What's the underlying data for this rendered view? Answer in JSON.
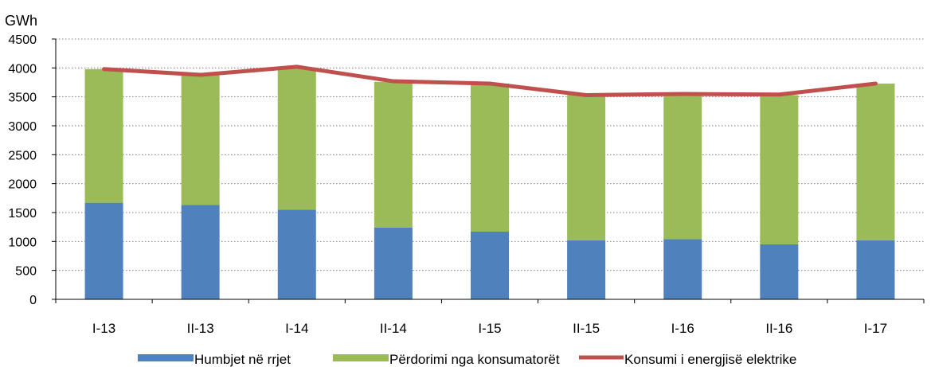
{
  "chart_data": {
    "type": "bar",
    "stacked": true,
    "ylabel": "GWh",
    "ylim": [
      0,
      4500
    ],
    "ytick_step": 500,
    "yticks": [
      "0",
      "500",
      "1000",
      "1500",
      "2000",
      "2500",
      "3000",
      "3500",
      "4000",
      "4500"
    ],
    "grid": true,
    "legend_position": "bottom",
    "categories": [
      "I-13",
      "II-13",
      "I-14",
      "II-14",
      "I-15",
      "II-15",
      "I-16",
      "II-16",
      "I-17"
    ],
    "series": [
      {
        "name": "Humbjet në rrjet",
        "kind": "bar",
        "color": "#4F81BD",
        "values": [
          1670,
          1630,
          1550,
          1240,
          1170,
          1020,
          1040,
          950,
          1020
        ]
      },
      {
        "name": "Përdorimi nga konsumatorët",
        "kind": "bar",
        "color": "#9BBB59",
        "values": [
          2310,
          2270,
          2460,
          2520,
          2560,
          2510,
          2500,
          2580,
          2710
        ]
      },
      {
        "name": "Konsumi i energjisë elektrike",
        "kind": "line",
        "color": "#C0504D",
        "values": [
          3980,
          3880,
          4020,
          3770,
          3730,
          3530,
          3550,
          3540,
          3730
        ]
      }
    ]
  }
}
